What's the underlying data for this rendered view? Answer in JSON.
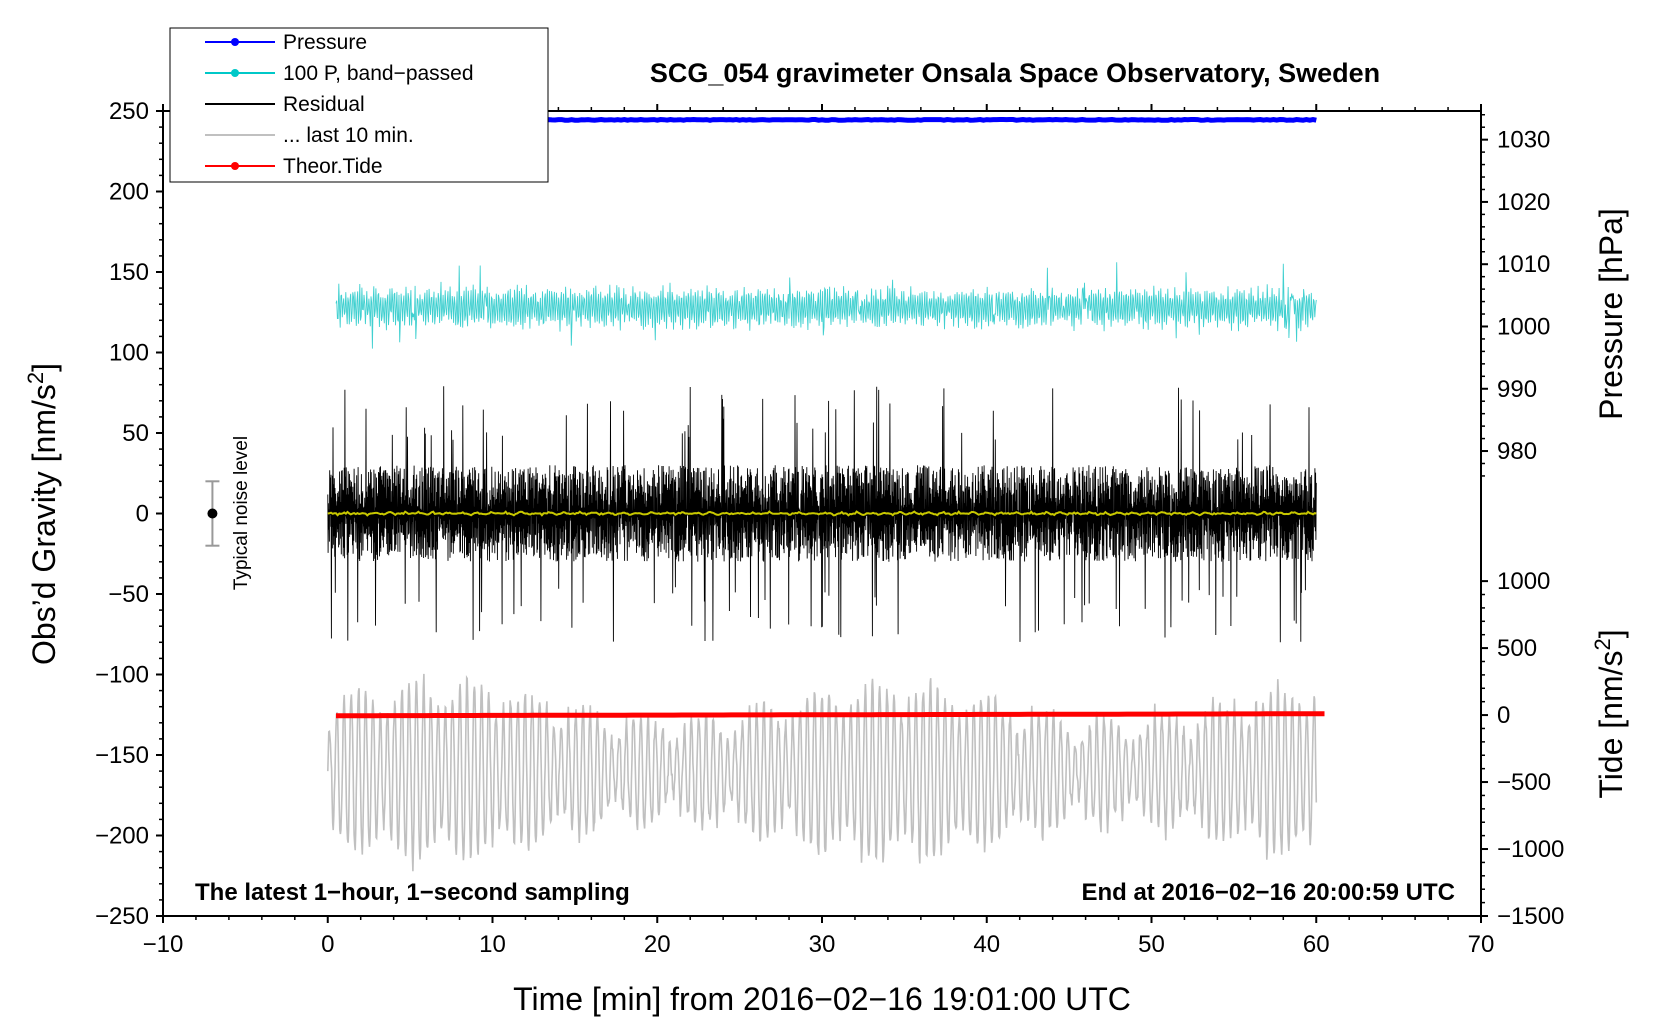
{
  "chart_data": {
    "type": "line",
    "title": "SCG_054 gravimeter Onsala Space Observatory, Sweden",
    "xlabel": "Time [min] from 2016−02−16 19:01:00 UTC",
    "ylabel_left_main": "Obs’d Gravity [nm/s",
    "ylabel_left_sup": "2",
    "ylabel_left_tail": "]",
    "ylabel_right_top": "Pressure [hPa]",
    "ylabel_right_bottom_main": "Tide [nm/s",
    "ylabel_right_bottom_sup": "2",
    "ylabel_right_bottom_tail": "]",
    "xlim": [
      -10,
      70
    ],
    "ylim_left": [
      -250,
      250
    ],
    "x_ticks": [
      "−10",
      "0",
      "10",
      "20",
      "30",
      "40",
      "50",
      "60",
      "70"
    ],
    "x_tick_values": [
      -10,
      0,
      10,
      20,
      30,
      40,
      50,
      60,
      70
    ],
    "y_left_ticks": [
      "250",
      "200",
      "150",
      "100",
      "50",
      "0",
      "−50",
      "−100",
      "−150",
      "−200",
      "−250"
    ],
    "y_left_tick_values": [
      250,
      200,
      150,
      100,
      50,
      0,
      -50,
      -100,
      -150,
      -200,
      -250
    ],
    "pressure_axis": {
      "ticks": [
        "1030",
        "1020",
        "1010",
        "1000",
        "990",
        "980"
      ],
      "tick_values": [
        1030,
        1020,
        1010,
        1000,
        990,
        980
      ],
      "map": {
        "value_a": 1030,
        "left_a": 232.2,
        "value_b": 980,
        "left_b": 38.8
      }
    },
    "tide_axis": {
      "ticks": [
        "1000",
        "500",
        "0",
        "−500",
        "−1000",
        "−1500"
      ],
      "tick_values": [
        1000,
        500,
        0,
        -500,
        -1000,
        -1500
      ],
      "map": {
        "value_a": 1000,
        "left_a": -42.0,
        "value_b": -1500,
        "left_b": -250
      }
    },
    "note_left": "The latest 1−hour, 1−second sampling",
    "note_right": "End at 2016−02−16 20:00:59 UTC",
    "noise_label": "Typical noise level",
    "noise_bar": {
      "x": -7,
      "center": 0,
      "half_range": 20
    },
    "legend": [
      {
        "label": "Pressure",
        "color": "#0000ff",
        "marker": true
      },
      {
        "label": "100 P, band−passed",
        "color": "#00c8c8",
        "marker": true
      },
      {
        "label": "Residual",
        "color": "#000000",
        "marker": false
      },
      {
        "label": "... last 10 min.",
        "color": "#c0c0c0",
        "marker": false
      },
      {
        "label": "Theor.Tide",
        "color": "#ff0000",
        "marker": true
      }
    ],
    "series": [
      {
        "name": "Pressure",
        "color": "#0000ff",
        "x_range": [
          0,
          60
        ],
        "left_level": 244.5,
        "pressure_hPa": 1031.3
      },
      {
        "name": "100 P, band−passed",
        "color": "#40d0d0",
        "x_range": [
          0.5,
          60
        ],
        "center": 128,
        "amplitude": 10,
        "min": 84,
        "max": 156
      },
      {
        "name": "Residual",
        "color": "#000000",
        "x_range": [
          0,
          60
        ],
        "center": 0,
        "amplitude": 30,
        "min": -85,
        "max": 80
      },
      {
        "name": "Residual (smoothed)",
        "color": "#c8c800",
        "x_range": [
          0,
          60
        ],
        "center": 0,
        "amplitude": 1.5
      },
      {
        "name": "... last 10 min.",
        "color": "#c0c0c0",
        "x_range": [
          0,
          60
        ],
        "center": -160,
        "amplitude": 45,
        "min": -230,
        "max": -80
      },
      {
        "name": "Theor.Tide",
        "color": "#ff0000",
        "x_range": [
          0.5,
          60.5
        ],
        "tide_start": -5,
        "tide_end": 10
      }
    ]
  }
}
